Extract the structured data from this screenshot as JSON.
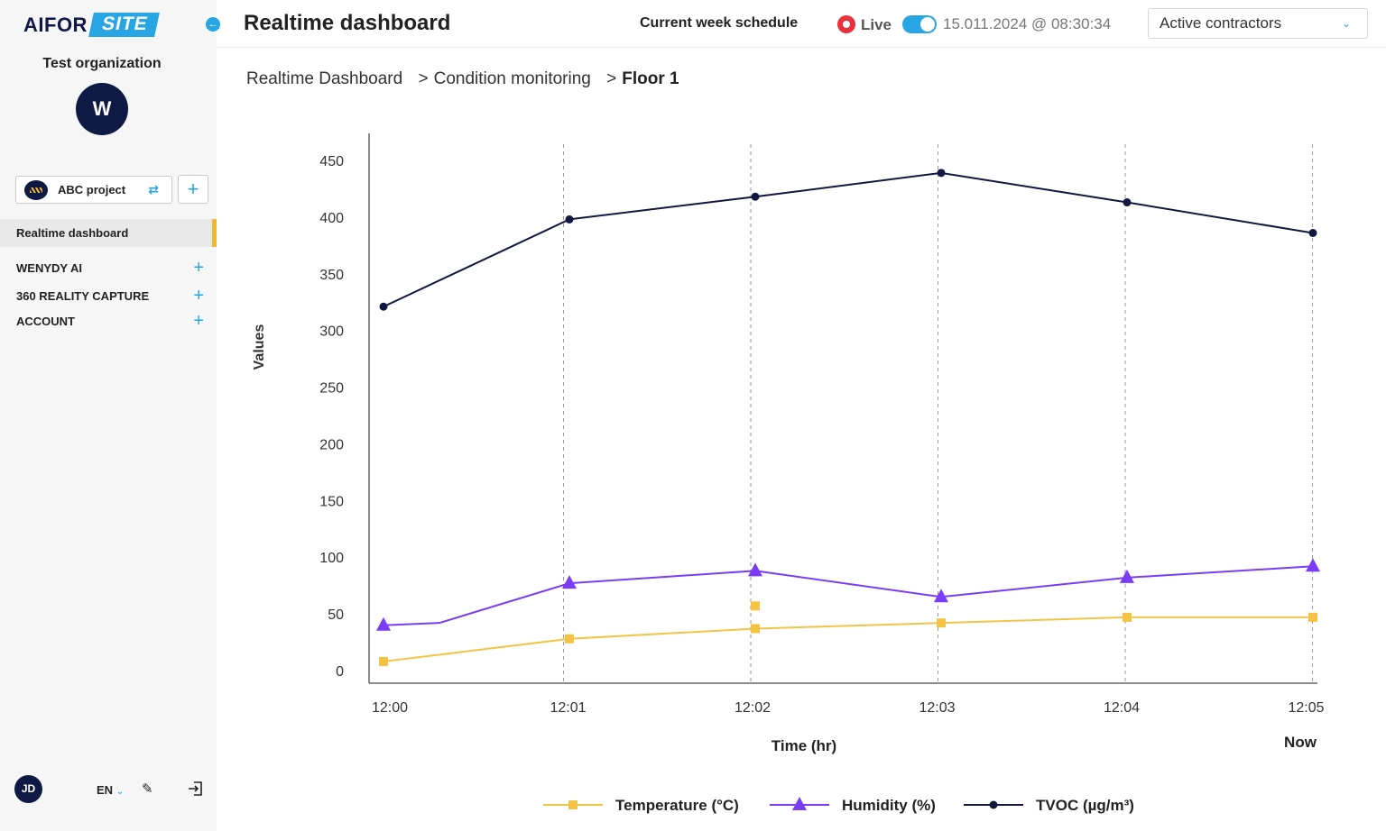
{
  "brand": {
    "part1": "AIFOR",
    "part2": "SITE"
  },
  "sidebar": {
    "org_name": "Test organization",
    "org_initial": "W",
    "project_label": "ABC project",
    "active_item": "Realtime dashboard",
    "sections": [
      {
        "label": "WENYDY AI"
      },
      {
        "label": "360 REALITY CAPTURE"
      },
      {
        "label": "ACCOUNT"
      }
    ],
    "user_initials": "JD",
    "language": "EN"
  },
  "header": {
    "title": "Realtime dashboard",
    "schedule": "Current week schedule",
    "live_label": "Live",
    "live_on": true,
    "timestamp": "15.011.2024 @ 08:30:34",
    "contractor_select": "Active contractors"
  },
  "breadcrumb": [
    "Realtime Dashboard",
    "Condition monitoring",
    "Floor 1"
  ],
  "colors": {
    "accent": "#27a6e3",
    "temperature": "#f5c344",
    "humidity": "#7b3cf5",
    "tvoc": "#11173f",
    "active_bar": "#f5b72d"
  },
  "chart_data": {
    "type": "line",
    "ylabel": "Values",
    "xlabel": "Time (hr)",
    "ylim": [
      0,
      450
    ],
    "yticks": [
      0,
      50,
      100,
      150,
      200,
      250,
      300,
      350,
      400,
      450
    ],
    "x_ticks": [
      "12:00",
      "12:01",
      "12:02",
      "12:03",
      "12:04",
      "12:05"
    ],
    "now_label": "Now",
    "grid": "vertical dashed",
    "legend_position": "bottom",
    "series": [
      {
        "name": "Temperature (°C)",
        "marker": "square",
        "points": [
          [
            0,
            8
          ],
          [
            1,
            28
          ],
          [
            2,
            37
          ],
          [
            3,
            42
          ],
          [
            4,
            47
          ],
          [
            5,
            47
          ]
        ],
        "extra_points": [
          [
            2,
            57
          ]
        ]
      },
      {
        "name": "Humidity (%)",
        "marker": "triangle",
        "points": [
          [
            0,
            40
          ],
          [
            0.3,
            42
          ],
          [
            1,
            77
          ],
          [
            2,
            88
          ],
          [
            3,
            65
          ],
          [
            4,
            82
          ],
          [
            5,
            92
          ]
        ]
      },
      {
        "name": "TVOC",
        "unit": "(µg/m³)",
        "marker": "circle",
        "points": [
          [
            0,
            321
          ],
          [
            1,
            398
          ],
          [
            2,
            418
          ],
          [
            3,
            439
          ],
          [
            4,
            413
          ],
          [
            5,
            386
          ]
        ]
      }
    ]
  }
}
